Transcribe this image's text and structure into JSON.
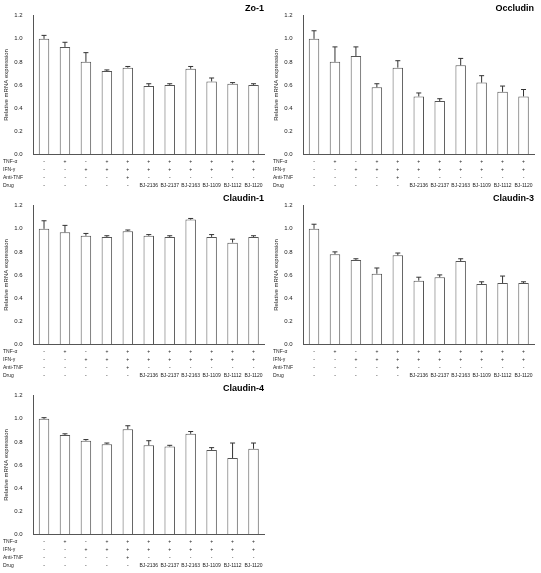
{
  "chart_data": [
    {
      "type": "bar",
      "title": "Zo-1",
      "y_label": "Relative mRNA expression",
      "categories": [
        null,
        null,
        null,
        null,
        null,
        null,
        null,
        null,
        null,
        null,
        null
      ],
      "values": [
        1.0,
        0.93,
        0.8,
        0.72,
        0.75,
        0.59,
        0.6,
        0.74,
        0.63,
        0.61,
        0.6
      ],
      "errors": [
        0.03,
        0.04,
        0.08,
        0.01,
        0.01,
        0.02,
        0.01,
        0.02,
        0.03,
        0.01,
        0.01
      ],
      "conditions": {
        "labels": [
          "TNF-α",
          "IFN-γ",
          "Anti-TNF",
          "Drug"
        ],
        "rows": [
          [
            "-",
            "+",
            "-",
            "+",
            "+",
            "+",
            "+",
            "+",
            "+",
            "+",
            "+"
          ],
          [
            "-",
            "-",
            "+",
            "+",
            "+",
            "+",
            "+",
            "+",
            "+",
            "+",
            "+"
          ],
          [
            "-",
            "-",
            "-",
            "-",
            "+",
            "-",
            "-",
            "-",
            "-",
            "-",
            "-"
          ],
          [
            "-",
            "-",
            "-",
            "-",
            "-",
            "BJ-2136",
            "BJ-2137",
            "BJ-2163",
            "BJ-1109",
            "BJ-1112",
            "BJ-1120"
          ]
        ]
      },
      "color": "#ffffff",
      "ylim": [
        0,
        1.2
      ],
      "yticks": [
        {
          "value": 0,
          "label": "0.0"
        },
        0.2,
        0.4,
        0.6,
        0.8,
        {
          "value": 1,
          "label": "1.0"
        },
        1.2
      ],
      "grid": false,
      "tick_labels": "y"
    },
    {
      "type": "bar",
      "title": "Occludin",
      "y_label": "Relative mRNA expression",
      "categories": [
        null,
        null,
        null,
        null,
        null,
        null,
        null,
        null,
        null,
        null,
        null
      ],
      "values": [
        1.0,
        0.8,
        0.85,
        0.58,
        0.75,
        0.5,
        0.46,
        0.77,
        0.62,
        0.54,
        0.5
      ],
      "errors": [
        0.07,
        0.13,
        0.08,
        0.03,
        0.06,
        0.03,
        0.02,
        0.06,
        0.06,
        0.05,
        0.06
      ],
      "conditions": {
        "labels": [
          "TNF-α",
          "IFN-γ",
          "Anti-TNF",
          "Drug"
        ],
        "rows": [
          [
            "-",
            "+",
            "-",
            "+",
            "+",
            "+",
            "+",
            "+",
            "+",
            "+",
            "+"
          ],
          [
            "-",
            "-",
            "+",
            "+",
            "+",
            "+",
            "+",
            "+",
            "+",
            "+",
            "+"
          ],
          [
            "-",
            "-",
            "-",
            "-",
            "+",
            "-",
            "-",
            "-",
            "-",
            "-",
            "-"
          ],
          [
            "-",
            "-",
            "-",
            "-",
            "-",
            "BJ-2136",
            "BJ-2137",
            "BJ-2163",
            "BJ-1109",
            "BJ-1112",
            "BJ-1120"
          ]
        ]
      },
      "color": "#ffffff",
      "ylim": [
        0,
        1.2
      ],
      "yticks": [
        {
          "value": 0,
          "label": "0.0"
        },
        0.2,
        0.4,
        0.6,
        0.8,
        {
          "value": 1,
          "label": "1.0"
        },
        1.2
      ],
      "grid": false,
      "tick_labels": "y"
    },
    {
      "type": "bar",
      "title": "Claudin-1",
      "y_label": "Relative mRNA expression",
      "categories": [
        null,
        null,
        null,
        null,
        null,
        null,
        null,
        null,
        null,
        null,
        null
      ],
      "values": [
        1.0,
        0.97,
        0.94,
        0.93,
        0.98,
        0.94,
        0.93,
        1.08,
        0.93,
        0.88,
        0.93
      ],
      "errors": [
        0.07,
        0.06,
        0.02,
        0.01,
        0.01,
        0.01,
        0.01,
        0.01,
        0.02,
        0.03,
        0.01
      ],
      "conditions": {
        "labels": [
          "TNF-α",
          "IFN-γ",
          "Anti-TNF",
          "Drug"
        ],
        "rows": [
          [
            "-",
            "+",
            "-",
            "+",
            "+",
            "+",
            "+",
            "+",
            "+",
            "+",
            "+"
          ],
          [
            "-",
            "-",
            "+",
            "+",
            "+",
            "+",
            "+",
            "+",
            "+",
            "+",
            "+"
          ],
          [
            "-",
            "-",
            "-",
            "-",
            "+",
            "-",
            "-",
            "-",
            "-",
            "-",
            "-"
          ],
          [
            "-",
            "-",
            "-",
            "-",
            "-",
            "BJ-2136",
            "BJ-2137",
            "BJ-2163",
            "BJ-1109",
            "BJ-1112",
            "BJ-1120"
          ]
        ]
      },
      "color": "#ffffff",
      "ylim": [
        0,
        1.2
      ],
      "yticks": [
        {
          "value": 0,
          "label": "0.0"
        },
        0.2,
        0.4,
        0.6,
        0.8,
        {
          "value": 1,
          "label": "1.0"
        },
        1.2
      ],
      "grid": false,
      "tick_labels": "y"
    },
    {
      "type": "bar",
      "title": "Claudin-3",
      "y_label": "Relative mRNA expression",
      "categories": [
        null,
        null,
        null,
        null,
        null,
        null,
        null,
        null,
        null,
        null,
        null
      ],
      "values": [
        1.0,
        0.78,
        0.73,
        0.61,
        0.77,
        0.55,
        0.58,
        0.72,
        0.52,
        0.53,
        0.53
      ],
      "errors": [
        0.04,
        0.02,
        0.01,
        0.05,
        0.02,
        0.03,
        0.02,
        0.02,
        0.02,
        0.06,
        0.01
      ],
      "conditions": {
        "labels": [
          "TNF-α",
          "IFN-γ",
          "Anti-TNF",
          "Drug"
        ],
        "rows": [
          [
            "-",
            "+",
            "-",
            "+",
            "+",
            "+",
            "+",
            "+",
            "+",
            "+",
            "+"
          ],
          [
            "-",
            "-",
            "+",
            "+",
            "+",
            "+",
            "+",
            "+",
            "+",
            "+",
            "+"
          ],
          [
            "-",
            "-",
            "-",
            "-",
            "+",
            "-",
            "-",
            "-",
            "-",
            "-",
            "-"
          ],
          [
            "-",
            "-",
            "-",
            "-",
            "-",
            "BJ-2136",
            "BJ-2137",
            "BJ-2163",
            "BJ-1109",
            "BJ-1112",
            "BJ-1120"
          ]
        ]
      },
      "color": "#ffffff",
      "ylim": [
        0,
        1.2
      ],
      "yticks": [
        {
          "value": 0,
          "label": "0.0"
        },
        0.2,
        0.4,
        0.6,
        0.8,
        {
          "value": 1,
          "label": "1.0"
        },
        1.2
      ],
      "grid": false,
      "tick_labels": "y"
    },
    {
      "type": "bar",
      "title": "Claudin-4",
      "y_label": "Relative mRNA expression",
      "categories": [
        null,
        null,
        null,
        null,
        null,
        null,
        null,
        null,
        null,
        null,
        null
      ],
      "values": [
        1.0,
        0.86,
        0.81,
        0.78,
        0.91,
        0.77,
        0.76,
        0.87,
        0.73,
        0.66,
        0.74
      ],
      "errors": [
        0.01,
        0.01,
        0.01,
        0.01,
        0.03,
        0.04,
        0.01,
        0.02,
        0.02,
        0.13,
        0.05
      ],
      "conditions": {
        "labels": [
          "TNF-α",
          "IFN-γ",
          "Anti-TNF",
          "Drug"
        ],
        "rows": [
          [
            "-",
            "+",
            "-",
            "+",
            "+",
            "+",
            "+",
            "+",
            "+",
            "+",
            "+"
          ],
          [
            "-",
            "-",
            "+",
            "+",
            "+",
            "+",
            "+",
            "+",
            "+",
            "+",
            "+"
          ],
          [
            "-",
            "-",
            "-",
            "-",
            "+",
            "-",
            "-",
            "-",
            "-",
            "-",
            "-"
          ],
          [
            "-",
            "-",
            "-",
            "-",
            "-",
            "BJ-2136",
            "BJ-2137",
            "BJ-2163",
            "BJ-1109",
            "BJ-1112",
            "BJ-1120"
          ]
        ]
      },
      "color": "#ffffff",
      "ylim": [
        0,
        1.2
      ],
      "yticks": [
        {
          "value": 0,
          "label": "0.0"
        },
        0.2,
        0.4,
        0.6,
        0.8,
        {
          "value": 1,
          "label": "1.0"
        },
        1.2
      ],
      "grid": false,
      "tick_labels": "y"
    }
  ]
}
